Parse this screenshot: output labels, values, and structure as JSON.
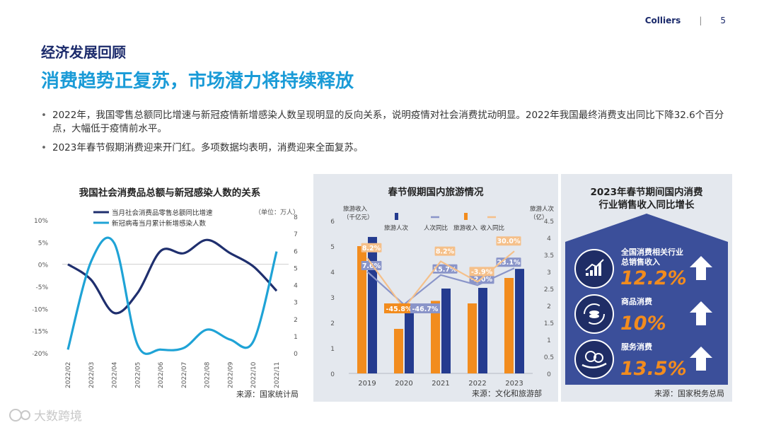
{
  "header": {
    "brand": "Colliers",
    "separator": "|",
    "page_number": "5"
  },
  "section_title": "经济发展回顾",
  "headline": "消费趋势正复苏，市场潜力将持续释放",
  "bullets": [
    "2022年，我国零售总额同比增速与新冠疫情新增感染人数呈现明显的反向关系，说明疫情对社会消费扰动明显。2022年我国最终消费支出同比下降32.6个百分点，大幅低于疫情前水平。",
    "2023年春节假期消费迎来开门红。多项数据均表明，消费迎来全面复苏。"
  ],
  "chart1": {
    "title": "我国社会消费品总额与新冠感染人数的关系",
    "unit_note": "（单位：万人）",
    "source": "来源：国家统计局",
    "chart_data": {
      "type": "line",
      "categories": [
        "2022/02",
        "2022/03",
        "2022/04",
        "2022/05",
        "2022/06",
        "2022/07",
        "2022/08",
        "2022/09",
        "2022/10",
        "2022/11"
      ],
      "left_axis": {
        "ticks": [
          "10%",
          "5%",
          "0%",
          "-5%",
          "-10%",
          "-15%",
          "-20%"
        ],
        "range": [
          -20,
          10
        ]
      },
      "right_axis": {
        "ticks": [
          "8",
          "7",
          "6",
          "5",
          "4",
          "3",
          "2",
          "1",
          "0"
        ],
        "range": [
          0,
          8
        ]
      },
      "series": [
        {
          "name": "当月社会消费品零售总额同比增速",
          "axis": "left",
          "color": "#1f2f6e",
          "values": [
            0,
            -3.5,
            -11,
            -6.5,
            3,
            2.5,
            5.5,
            2.5,
            -0.5,
            -6
          ]
        },
        {
          "name": "新冠病毒当月累计新增感染人数",
          "axis": "right",
          "color": "#1fa3d6",
          "values": [
            0.2,
            5.5,
            6.6,
            0.5,
            0.2,
            0.3,
            1.4,
            0.8,
            0.7,
            6.1
          ]
        }
      ]
    }
  },
  "chart2": {
    "title": "春节假期国内旅游情况",
    "left_axis_label": [
      "旅游收入",
      "（千亿元）"
    ],
    "right_axis_label": [
      "旅游人次",
      "（亿）"
    ],
    "source": "来源：文化和旅游部",
    "chart_data": {
      "type": "bar",
      "categories": [
        "2019",
        "2020",
        "2021",
        "2022",
        "2023"
      ],
      "left_axis": {
        "ticks": [
          "6",
          "5",
          "4",
          "3",
          "2",
          "1",
          "0"
        ],
        "range": [
          0,
          6
        ]
      },
      "right_axis": {
        "ticks": [
          "4.5",
          "4",
          "3.5",
          "3",
          "2.5",
          "2",
          "1.5",
          "1",
          "0.5",
          "0"
        ],
        "range": [
          0,
          4.5
        ]
      },
      "series": [
        {
          "name": "旅游人次",
          "axis": "right",
          "color": "#243b8f",
          "values": [
            4.02,
            1.95,
            2.5,
            2.52,
            3.08
          ]
        },
        {
          "name": "人次同比",
          "axis": "right",
          "color": "#8a95c9",
          "values": [
            3.0,
            2.03,
            2.9,
            2.6,
            3.1
          ],
          "labels": [
            "7.6%",
            "",
            "15.7%",
            "-2.0%",
            "23.1%"
          ]
        },
        {
          "name": "旅游收入",
          "axis": "left",
          "color": "#f28c1e",
          "values": [
            5.0,
            1.75,
            2.85,
            2.75,
            3.75
          ]
        },
        {
          "name": "收入同比",
          "axis": "right",
          "color": "#f5c08a",
          "values": [
            3.4,
            1.92,
            3.3,
            2.7,
            3.6
          ],
          "labels": [
            "8.2%",
            "",
            "8.2%",
            "-3.9%",
            "30.0%"
          ]
        }
      ],
      "extra_labels": [
        {
          "text": "-45.8%",
          "color": "#f28c1e"
        },
        {
          "text": "-46.7%",
          "color": "#8a95c9"
        }
      ],
      "legend": "top"
    }
  },
  "chart3": {
    "title": "2023年春节期间国内消费行业销售收入同比增长",
    "items": [
      {
        "label_lines": [
          "全国消费相关行业",
          "总销售收入"
        ],
        "value": "12.2%"
      },
      {
        "label_lines": [
          "商品消费"
        ],
        "value": "10%"
      },
      {
        "label_lines": [
          "服务消费"
        ],
        "value": "13.5%"
      }
    ],
    "source": "来源：国家税务总局",
    "colors": {
      "bg": "#3b4f9a",
      "value": "#f28c1e"
    }
  },
  "watermark": "大数跨境"
}
